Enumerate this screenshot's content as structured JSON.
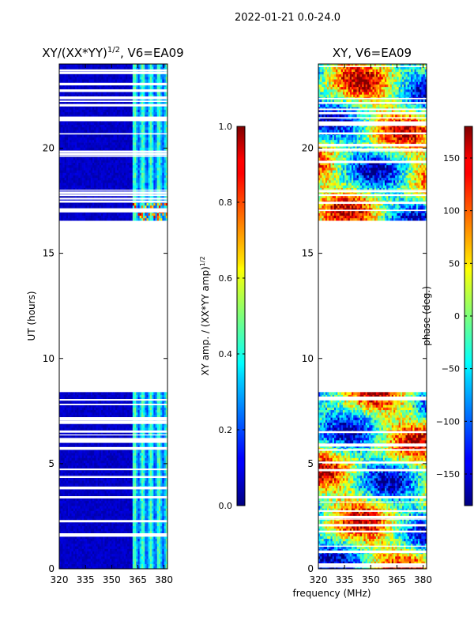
{
  "suptitle": "2022-01-21 0.0-24.0",
  "shared_xlabel": "frequency (MHz)",
  "chart_data": [
    {
      "type": "heatmap",
      "title": "XY/(XX*YY)",
      "title_superscript": "1/2",
      "title_suffix": ", V6=EA09",
      "ylabel": "UT (hours)",
      "xlim": [
        320,
        382
      ],
      "ylim": [
        0,
        24
      ],
      "xticks": [
        320,
        335,
        350,
        365,
        380
      ],
      "yticks": [
        0,
        5,
        10,
        15,
        20
      ],
      "data_gap_hours": [
        8.4,
        16.5
      ],
      "colorbar": {
        "label": "XY amp. / (XX*YY amp)",
        "label_superscript": "1/2",
        "range": [
          0.0,
          1.0
        ],
        "ticks": [
          "0.0",
          "0.2",
          "0.4",
          "0.6",
          "0.8",
          "1.0"
        ],
        "colormap": "jet"
      }
    },
    {
      "type": "heatmap",
      "title": "XY, V6=EA09",
      "ylabel": "",
      "xlim": [
        320,
        382
      ],
      "ylim": [
        0,
        24
      ],
      "xticks": [
        320,
        335,
        350,
        365,
        380
      ],
      "yticks": [
        0,
        5,
        10,
        15,
        20
      ],
      "data_gap_hours": [
        8.4,
        16.5
      ],
      "colorbar": {
        "label": "phase (deg.)",
        "range": [
          -180,
          180
        ],
        "ticks": [
          "−150",
          "−100",
          "−50",
          "0",
          "50",
          "100",
          "150"
        ],
        "colormap": "jet"
      }
    }
  ]
}
